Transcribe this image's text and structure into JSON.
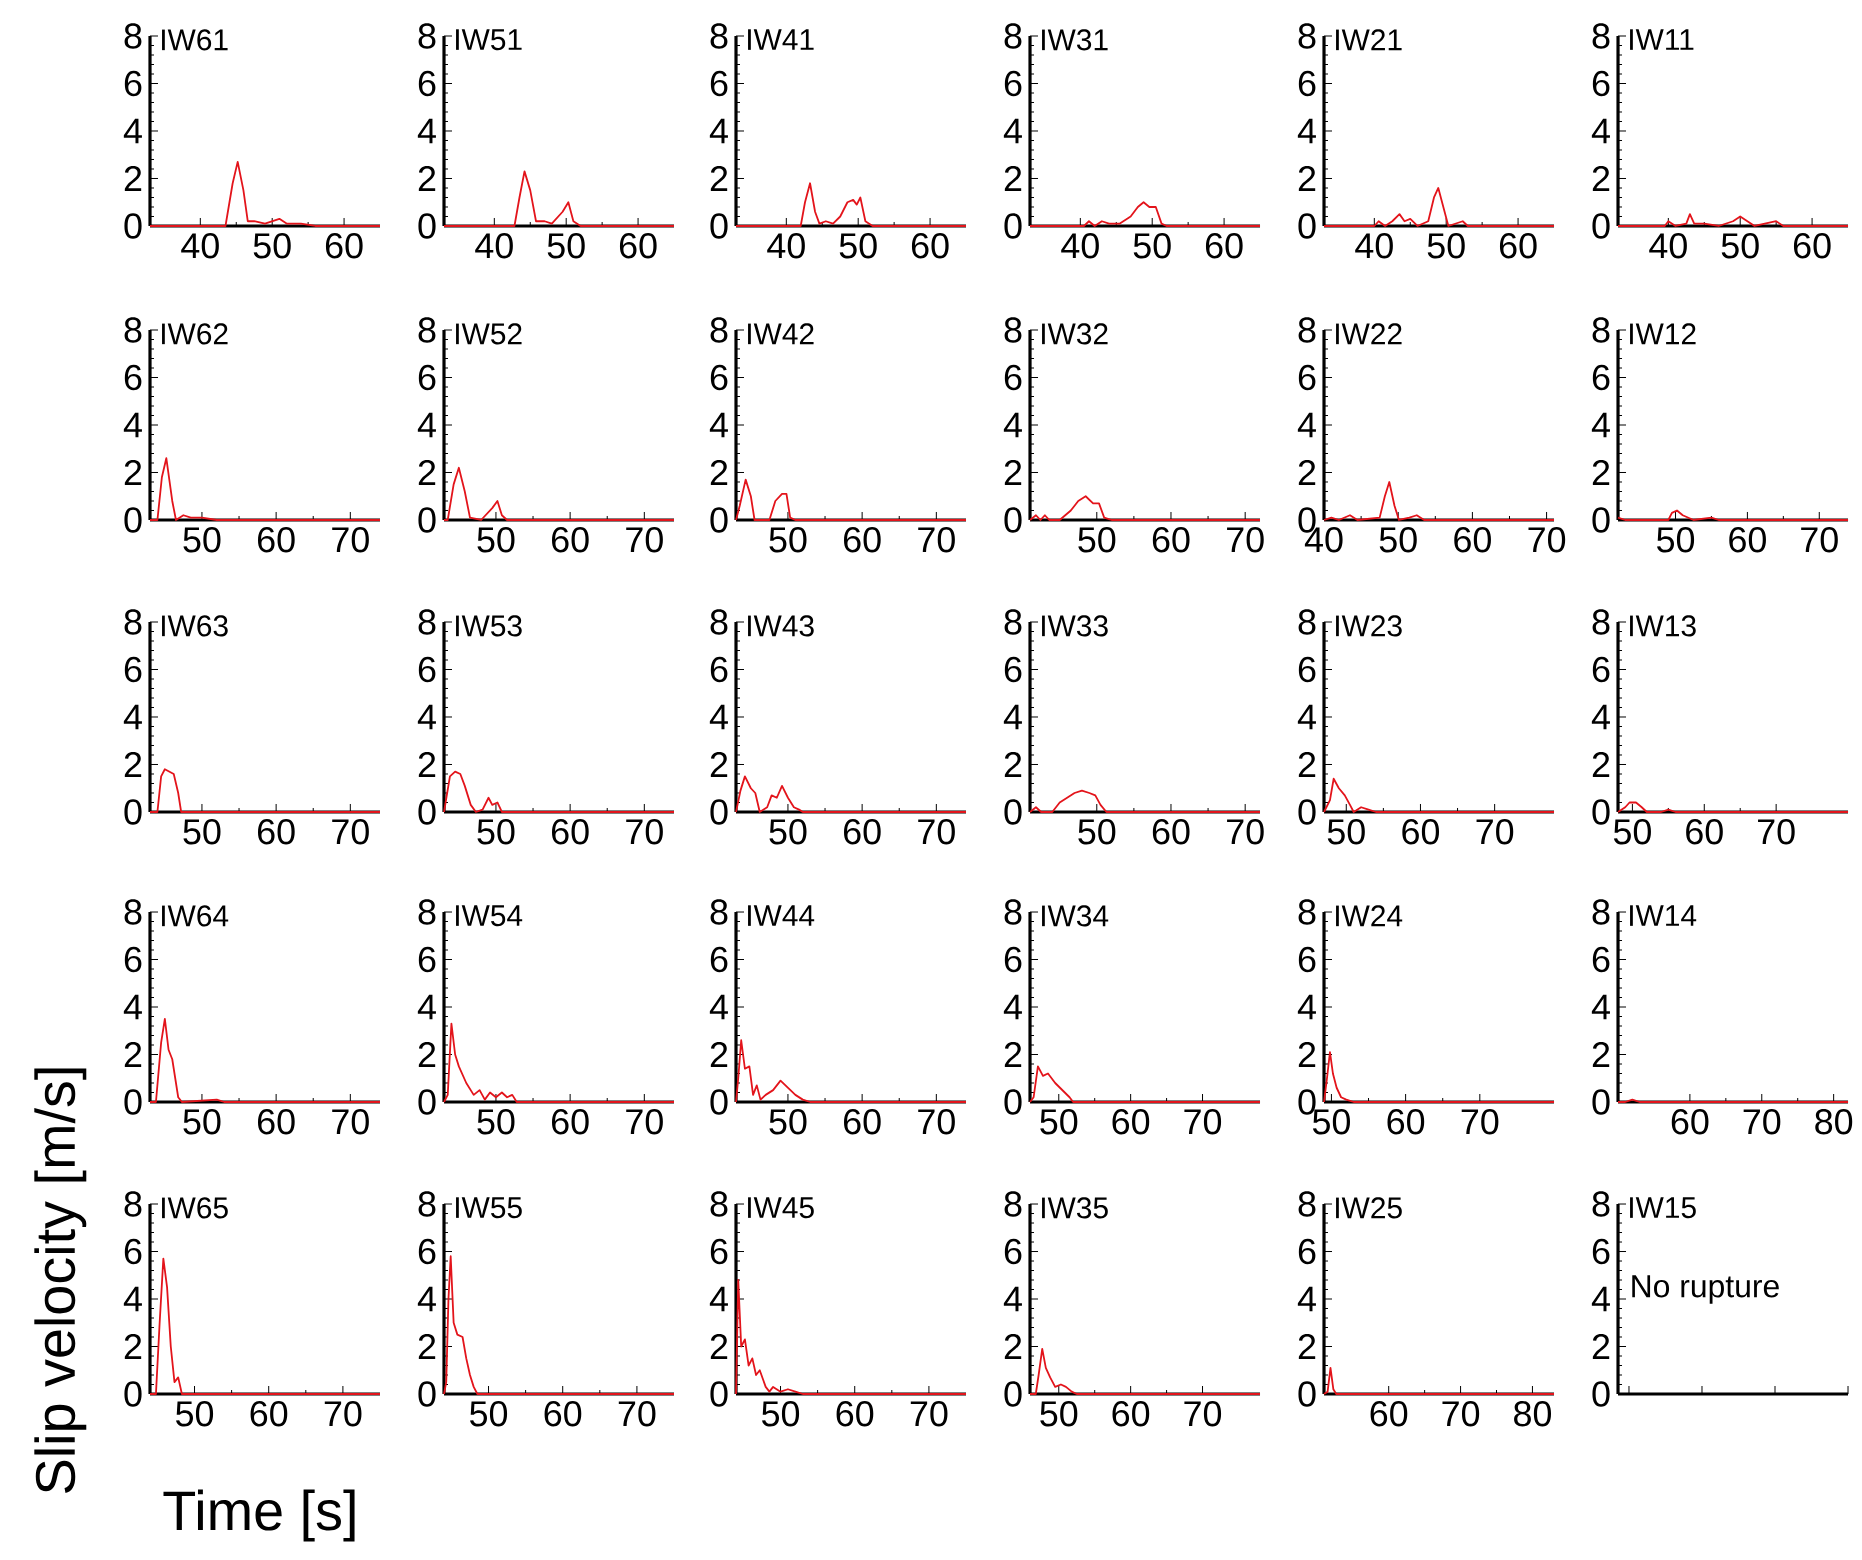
{
  "chart_data": [
    {
      "type": "line",
      "title": "IW61",
      "color": "#e3141b",
      "xlim": [
        33,
        65
      ],
      "xticks": [
        40,
        50,
        60
      ],
      "ylim": [
        0,
        8
      ],
      "yticks": [
        0,
        2,
        4,
        6,
        8
      ],
      "x": [
        33,
        43.5,
        44.5,
        45.2,
        46,
        46.6,
        47.5,
        49,
        51,
        52,
        54,
        56,
        65
      ],
      "values": [
        0,
        0,
        1.8,
        2.7,
        1.5,
        0.2,
        0.2,
        0.1,
        0.3,
        0.1,
        0.1,
        0,
        0
      ]
    },
    {
      "type": "line",
      "title": "IW51",
      "color": "#e3141b",
      "xlim": [
        33,
        65
      ],
      "xticks": [
        40,
        50,
        60
      ],
      "ylim": [
        0,
        8
      ],
      "yticks": [
        0,
        2,
        4,
        6,
        8
      ],
      "x": [
        33,
        42.8,
        43.5,
        44.2,
        45,
        45.8,
        47,
        48,
        49.5,
        50.3,
        51,
        52,
        65
      ],
      "values": [
        0,
        0,
        1.2,
        2.3,
        1.5,
        0.2,
        0.2,
        0.1,
        0.6,
        1.0,
        0.2,
        0,
        0
      ]
    },
    {
      "type": "line",
      "title": "IW41",
      "color": "#e3141b",
      "xlim": [
        33,
        65
      ],
      "xticks": [
        40,
        50,
        60
      ],
      "ylim": [
        0,
        8
      ],
      "yticks": [
        0,
        2,
        4,
        6,
        8
      ],
      "x": [
        33,
        42,
        42.6,
        43.3,
        44,
        44.6,
        45.5,
        46.5,
        47.5,
        48.5,
        49.3,
        49.8,
        50.3,
        51,
        52,
        65
      ],
      "values": [
        0,
        0,
        1.0,
        1.8,
        0.6,
        0.1,
        0.2,
        0.1,
        0.4,
        1.0,
        1.1,
        0.9,
        1.2,
        0.2,
        0,
        0
      ]
    },
    {
      "type": "line",
      "title": "IW31",
      "color": "#e3141b",
      "xlim": [
        33,
        65
      ],
      "xticks": [
        40,
        50,
        60
      ],
      "ylim": [
        0,
        8
      ],
      "yticks": [
        0,
        2,
        4,
        6,
        8
      ],
      "x": [
        33,
        40.5,
        41.2,
        42,
        43,
        44,
        45.5,
        47,
        48,
        48.8,
        49.6,
        50.5,
        51.3,
        52,
        65
      ],
      "values": [
        0,
        0,
        0.2,
        0,
        0.2,
        0.1,
        0.1,
        0.4,
        0.8,
        1.0,
        0.8,
        0.8,
        0.1,
        0,
        0
      ]
    },
    {
      "type": "line",
      "title": "IW21",
      "color": "#e3141b",
      "xlim": [
        33,
        65
      ],
      "xticks": [
        40,
        50,
        60
      ],
      "ylim": [
        0,
        8
      ],
      "yticks": [
        0,
        2,
        4,
        6,
        8
      ],
      "x": [
        33,
        40,
        40.6,
        41.5,
        42.5,
        43.5,
        44.2,
        45,
        46,
        47.5,
        48.3,
        48.9,
        49.6,
        50.3,
        52.3,
        53,
        65
      ],
      "values": [
        0,
        0,
        0.2,
        0,
        0.2,
        0.5,
        0.2,
        0.3,
        0,
        0.2,
        1.2,
        1.6,
        0.8,
        0,
        0.2,
        0,
        0
      ]
    },
    {
      "type": "line",
      "title": "IW11",
      "color": "#e3141b",
      "xlim": [
        33,
        65
      ],
      "xticks": [
        40,
        50,
        60
      ],
      "ylim": [
        0,
        8
      ],
      "yticks": [
        0,
        2,
        4,
        6,
        8
      ],
      "x": [
        33,
        39.5,
        40,
        41,
        42.5,
        43,
        43.6,
        45,
        47,
        49,
        50,
        51,
        52,
        55,
        56,
        65
      ],
      "values": [
        0,
        0,
        0.2,
        0,
        0.1,
        0.5,
        0.1,
        0.1,
        0,
        0.2,
        0.4,
        0.2,
        0,
        0.2,
        0,
        0
      ]
    },
    {
      "type": "line",
      "title": "IW62",
      "color": "#e3141b",
      "xlim": [
        43,
        74
      ],
      "xticks": [
        50,
        60,
        70
      ],
      "ylim": [
        0,
        8
      ],
      "yticks": [
        0,
        2,
        4,
        6,
        8
      ],
      "x": [
        43,
        44,
        44.6,
        45.2,
        46,
        46.5,
        47.5,
        48.5,
        50,
        52,
        74
      ],
      "values": [
        0,
        0,
        1.8,
        2.6,
        0.8,
        0,
        0.2,
        0.1,
        0.1,
        0,
        0
      ]
    },
    {
      "type": "line",
      "title": "IW52",
      "color": "#e3141b",
      "xlim": [
        43,
        74
      ],
      "xticks": [
        50,
        60,
        70
      ],
      "ylim": [
        0,
        8
      ],
      "yticks": [
        0,
        2,
        4,
        6,
        8
      ],
      "x": [
        43,
        43.5,
        44.3,
        45,
        45.8,
        46.5,
        48,
        49.5,
        50.2,
        50.8,
        51.5,
        74
      ],
      "values": [
        0,
        0,
        1.5,
        2.2,
        1.2,
        0.1,
        0,
        0.5,
        0.8,
        0.2,
        0,
        0
      ]
    },
    {
      "type": "line",
      "title": "IW42",
      "color": "#e3141b",
      "xlim": [
        43,
        74
      ],
      "xticks": [
        50,
        60,
        70
      ],
      "ylim": [
        0,
        8
      ],
      "yticks": [
        0,
        2,
        4,
        6,
        8
      ],
      "x": [
        43,
        43.5,
        44.3,
        45,
        45.5,
        47.5,
        48.3,
        49.2,
        49.8,
        50.3,
        51,
        74
      ],
      "values": [
        0,
        0.6,
        1.7,
        1.0,
        0,
        0,
        0.8,
        1.1,
        1.1,
        0.1,
        0,
        0
      ]
    },
    {
      "type": "line",
      "title": "IW32",
      "color": "#e3141b",
      "xlim": [
        41,
        72
      ],
      "xticks": [
        50,
        60,
        70
      ],
      "ylim": [
        0,
        8
      ],
      "yticks": [
        0,
        2,
        4,
        6,
        8
      ],
      "x": [
        41,
        41.8,
        42.4,
        43,
        43.6,
        45,
        46.5,
        47.5,
        48.5,
        49.5,
        50.3,
        51,
        52,
        72
      ],
      "values": [
        0,
        0.2,
        0,
        0.2,
        0,
        0,
        0.4,
        0.8,
        1.0,
        0.7,
        0.7,
        0.1,
        0,
        0
      ]
    },
    {
      "type": "line",
      "title": "IW22",
      "color": "#e3141b",
      "xlim": [
        40,
        71
      ],
      "xticks": [
        40,
        50,
        60,
        70
      ],
      "ylim": [
        0,
        8
      ],
      "yticks": [
        0,
        2,
        4,
        6,
        8
      ],
      "x": [
        40,
        41,
        42,
        43.5,
        44.5,
        47.5,
        48.2,
        48.8,
        49.5,
        50.1,
        51.5,
        52.5,
        53.5,
        71
      ],
      "values": [
        0,
        0.1,
        0,
        0.2,
        0,
        0.1,
        1.0,
        1.6,
        0.6,
        0,
        0.1,
        0.2,
        0,
        0
      ]
    },
    {
      "type": "line",
      "title": "IW12",
      "color": "#e3141b",
      "xlim": [
        42,
        74
      ],
      "xticks": [
        50,
        60,
        70
      ],
      "ylim": [
        0,
        8
      ],
      "yticks": [
        0,
        2,
        4,
        6,
        8
      ],
      "x": [
        42,
        43,
        44.5,
        49,
        49.5,
        50.2,
        51,
        52.5,
        55,
        56,
        74
      ],
      "values": [
        0.1,
        0,
        0,
        0,
        0.3,
        0.4,
        0.2,
        0,
        0.1,
        0,
        0
      ]
    },
    {
      "type": "line",
      "title": "IW63",
      "color": "#e3141b",
      "xlim": [
        43,
        74
      ],
      "xticks": [
        50,
        60,
        70
      ],
      "ylim": [
        0,
        8
      ],
      "yticks": [
        0,
        2,
        4,
        6,
        8
      ],
      "x": [
        43,
        44,
        44.5,
        45,
        46.2,
        46.8,
        47.2,
        74
      ],
      "values": [
        0,
        0,
        1.5,
        1.8,
        1.6,
        0.8,
        0,
        0
      ]
    },
    {
      "type": "line",
      "title": "IW53",
      "color": "#e3141b",
      "xlim": [
        43,
        74
      ],
      "xticks": [
        50,
        60,
        70
      ],
      "ylim": [
        0,
        8
      ],
      "yticks": [
        0,
        2,
        4,
        6,
        8
      ],
      "x": [
        43,
        43.8,
        44.5,
        45.2,
        45.8,
        46.6,
        47.3,
        48.2,
        49,
        49.5,
        50.2,
        50.8,
        74
      ],
      "values": [
        0,
        1.5,
        1.7,
        1.6,
        1.1,
        0.3,
        0,
        0.1,
        0.6,
        0.3,
        0.4,
        0,
        0
      ]
    },
    {
      "type": "line",
      "title": "IW43",
      "color": "#e3141b",
      "xlim": [
        43,
        74
      ],
      "xticks": [
        50,
        60,
        70
      ],
      "ylim": [
        0,
        8
      ],
      "yticks": [
        0,
        2,
        4,
        6,
        8
      ],
      "x": [
        43,
        43.6,
        44.2,
        45,
        45.6,
        46.2,
        47.2,
        47.8,
        48.5,
        49.2,
        50,
        50.8,
        51.5,
        52,
        74
      ],
      "values": [
        0,
        0.9,
        1.5,
        1.0,
        0.8,
        0,
        0.2,
        0.7,
        0.6,
        1.1,
        0.6,
        0.2,
        0.1,
        0,
        0
      ]
    },
    {
      "type": "line",
      "title": "IW33",
      "color": "#e3141b",
      "xlim": [
        41,
        72
      ],
      "xticks": [
        50,
        60,
        70
      ],
      "ylim": [
        0,
        8
      ],
      "yticks": [
        0,
        2,
        4,
        6,
        8
      ],
      "x": [
        41,
        41.8,
        42.5,
        44,
        45,
        46,
        47,
        48,
        49,
        49.8,
        50.5,
        51.3,
        72
      ],
      "values": [
        0,
        0.2,
        0,
        0,
        0.4,
        0.6,
        0.8,
        0.9,
        0.8,
        0.7,
        0.3,
        0,
        0
      ]
    },
    {
      "type": "line",
      "title": "IW23",
      "color": "#e3141b",
      "xlim": [
        47,
        78
      ],
      "xticks": [
        50,
        60,
        70
      ],
      "ylim": [
        0,
        8
      ],
      "yticks": [
        0,
        2,
        4,
        6,
        8
      ],
      "x": [
        47,
        47.8,
        48.3,
        49,
        49.8,
        50.5,
        51,
        52,
        53,
        54,
        78
      ],
      "values": [
        0,
        0.5,
        1.4,
        1.0,
        0.7,
        0.3,
        0,
        0.2,
        0.1,
        0,
        0
      ]
    },
    {
      "type": "line",
      "title": "IW13",
      "color": "#e3141b",
      "xlim": [
        48,
        80
      ],
      "xticks": [
        50,
        60,
        70
      ],
      "ylim": [
        0,
        8
      ],
      "yticks": [
        0,
        2,
        4,
        6,
        8
      ],
      "x": [
        48,
        49,
        49.6,
        50.5,
        51.3,
        52,
        54,
        55,
        56,
        80
      ],
      "values": [
        0,
        0.2,
        0.4,
        0.4,
        0.2,
        0,
        0,
        0.1,
        0,
        0
      ]
    },
    {
      "type": "line",
      "title": "IW64",
      "color": "#e3141b",
      "xlim": [
        43,
        74
      ],
      "xticks": [
        50,
        60,
        70
      ],
      "ylim": [
        0,
        8
      ],
      "yticks": [
        0,
        2,
        4,
        6,
        8
      ],
      "x": [
        43,
        43.8,
        44.5,
        45,
        45.5,
        46,
        46.8,
        47.3,
        52,
        53,
        74
      ],
      "values": [
        0,
        0,
        2.5,
        3.5,
        2.2,
        1.8,
        0.2,
        0,
        0.1,
        0,
        0
      ]
    },
    {
      "type": "line",
      "title": "IW54",
      "color": "#e3141b",
      "xlim": [
        43,
        74
      ],
      "xticks": [
        50,
        60,
        70
      ],
      "ylim": [
        0,
        8
      ],
      "yticks": [
        0,
        2,
        4,
        6,
        8
      ],
      "x": [
        43,
        43.5,
        44,
        44.5,
        45,
        46,
        47,
        47.8,
        48.5,
        49.2,
        50,
        50.8,
        51.5,
        52.2,
        52.8,
        74
      ],
      "values": [
        0,
        0.3,
        3.3,
        2.0,
        1.5,
        0.8,
        0.3,
        0.5,
        0.1,
        0.4,
        0.2,
        0.4,
        0.2,
        0.3,
        0,
        0
      ]
    },
    {
      "type": "line",
      "title": "IW44",
      "color": "#e3141b",
      "xlim": [
        43,
        74
      ],
      "xticks": [
        50,
        60,
        70
      ],
      "ylim": [
        0,
        8
      ],
      "yticks": [
        0,
        2,
        4,
        6,
        8
      ],
      "x": [
        43,
        43.3,
        43.7,
        44.2,
        44.8,
        45.3,
        45.8,
        46.3,
        47,
        48,
        49,
        50,
        51,
        52,
        53,
        74
      ],
      "values": [
        0,
        1.0,
        2.6,
        1.4,
        1.5,
        0.3,
        0.7,
        0.1,
        0.3,
        0.5,
        0.9,
        0.6,
        0.3,
        0.1,
        0,
        0
      ]
    },
    {
      "type": "line",
      "title": "IW34",
      "color": "#e3141b",
      "xlim": [
        46,
        78
      ],
      "xticks": [
        50,
        60,
        70
      ],
      "ylim": [
        0,
        8
      ],
      "yticks": [
        0,
        2,
        4,
        6,
        8
      ],
      "x": [
        46,
        46.5,
        47.1,
        47.8,
        48.5,
        49.5,
        50.5,
        51.5,
        52,
        78
      ],
      "values": [
        0,
        0.2,
        1.5,
        1.1,
        1.2,
        0.8,
        0.5,
        0.2,
        0,
        0
      ]
    },
    {
      "type": "line",
      "title": "IW24",
      "color": "#e3141b",
      "xlim": [
        49,
        80
      ],
      "xticks": [
        50,
        60,
        70
      ],
      "ylim": [
        0,
        8
      ],
      "yticks": [
        0,
        2,
        4,
        6,
        8
      ],
      "x": [
        49,
        49.4,
        49.8,
        50.2,
        50.7,
        51.3,
        52,
        53,
        54,
        80
      ],
      "values": [
        0,
        1.0,
        2.1,
        1.2,
        0.6,
        0.2,
        0.1,
        0,
        0,
        0
      ]
    },
    {
      "type": "line",
      "title": "IW14",
      "color": "#e3141b",
      "xlim": [
        50,
        82
      ],
      "xticks": [
        60,
        70,
        80
      ],
      "ylim": [
        0,
        8
      ],
      "yticks": [
        0,
        2,
        4,
        6,
        8
      ],
      "x": [
        50,
        51,
        52,
        53,
        55,
        82
      ],
      "values": [
        0,
        0,
        0.1,
        0,
        0,
        0
      ]
    },
    {
      "type": "line",
      "title": "IW65",
      "xlabel": "Time [s]",
      "ylabel": "Slip velocity [m/s]",
      "color": "#e3141b",
      "xlim": [
        44,
        75
      ],
      "xticks": [
        50,
        60,
        70
      ],
      "ylim": [
        0,
        8
      ],
      "yticks": [
        0,
        2,
        4,
        6,
        8
      ],
      "x": [
        44,
        44.8,
        45.3,
        45.8,
        46.3,
        46.8,
        47.3,
        47.8,
        48.3,
        75
      ],
      "values": [
        0,
        0,
        3.0,
        5.7,
        4.5,
        2.0,
        0.5,
        0.7,
        0,
        0
      ]
    },
    {
      "type": "line",
      "title": "IW55",
      "color": "#e3141b",
      "xlim": [
        44,
        75
      ],
      "xticks": [
        50,
        60,
        70
      ],
      "ylim": [
        0,
        8
      ],
      "yticks": [
        0,
        2,
        4,
        6,
        8
      ],
      "x": [
        44,
        44.3,
        44.6,
        44.9,
        45.3,
        45.8,
        46.5,
        47,
        47.5,
        48,
        48.5,
        75
      ],
      "values": [
        0,
        0.5,
        4.0,
        5.8,
        3.0,
        2.5,
        2.4,
        1.5,
        0.8,
        0.3,
        0,
        0
      ]
    },
    {
      "type": "line",
      "title": "IW45",
      "color": "#e3141b",
      "xlim": [
        44,
        75
      ],
      "xticks": [
        50,
        60,
        70
      ],
      "ylim": [
        0,
        8
      ],
      "yticks": [
        0,
        2,
        4,
        6,
        8
      ],
      "x": [
        44,
        44.3,
        44.7,
        45.2,
        45.7,
        46.2,
        46.7,
        47.2,
        48,
        48.5,
        49,
        50,
        51,
        52,
        53,
        75
      ],
      "values": [
        0,
        4.8,
        2.0,
        2.3,
        1.2,
        1.5,
        0.8,
        1.0,
        0.3,
        0.1,
        0.3,
        0.1,
        0.2,
        0.1,
        0,
        0
      ]
    },
    {
      "type": "line",
      "title": "IW35",
      "color": "#e3141b",
      "xlim": [
        46,
        78
      ],
      "xticks": [
        50,
        60,
        70
      ],
      "ylim": [
        0,
        8
      ],
      "yticks": [
        0,
        2,
        4,
        6,
        8
      ],
      "x": [
        46,
        46.8,
        47.2,
        47.7,
        48.2,
        48.8,
        49.5,
        50.3,
        51,
        51.8,
        52.5,
        78
      ],
      "values": [
        0,
        0,
        0.8,
        1.9,
        1.1,
        0.7,
        0.3,
        0.4,
        0.3,
        0.1,
        0,
        0
      ]
    },
    {
      "type": "line",
      "title": "IW25",
      "color": "#e3141b",
      "xlim": [
        51,
        83
      ],
      "xticks": [
        60,
        70,
        80
      ],
      "ylim": [
        0,
        8
      ],
      "yticks": [
        0,
        2,
        4,
        6,
        8
      ],
      "x": [
        51,
        51.5,
        51.9,
        52.3,
        52.7,
        83
      ],
      "values": [
        0,
        0.1,
        1.1,
        0.2,
        0,
        0
      ]
    },
    {
      "type": "line",
      "title": "IW15",
      "annotations": [
        "No rupture"
      ],
      "categories": [
        null,
        null,
        null,
        null
      ],
      "values": [
        null,
        null,
        null,
        null
      ],
      "ylim": [
        0,
        8
      ],
      "yticks": [
        0,
        2,
        4,
        6,
        8
      ],
      "tick_labels": "y"
    }
  ]
}
